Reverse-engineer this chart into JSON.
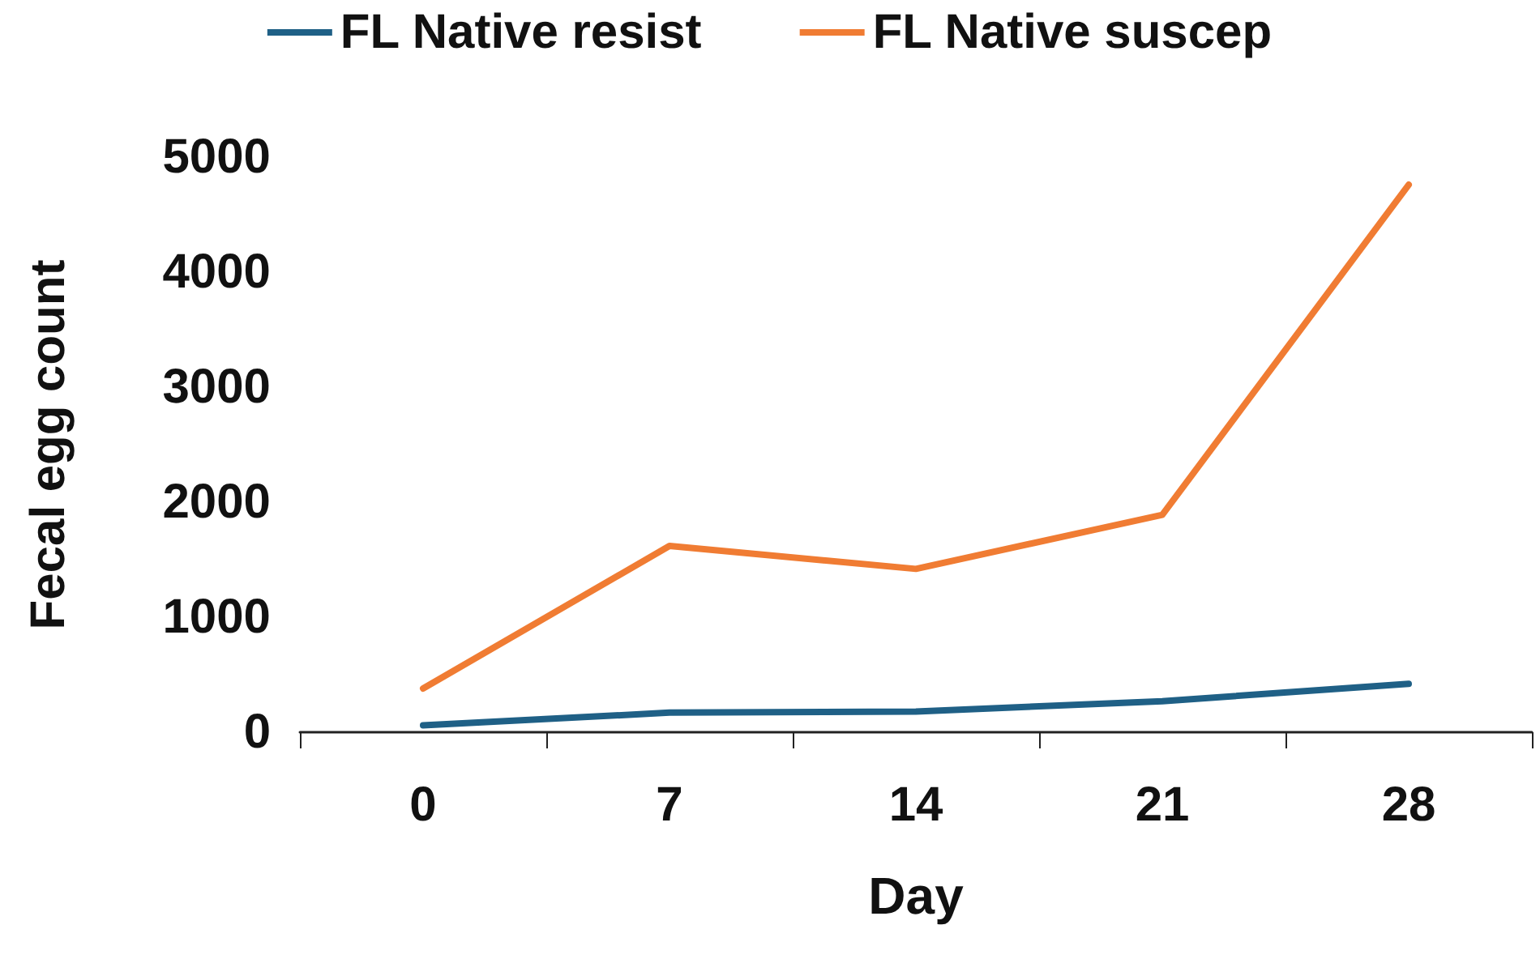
{
  "chart_data": {
    "type": "line",
    "xlabel": "Day",
    "ylabel": "Fecal egg count",
    "categories": [
      "0",
      "7",
      "14",
      "21",
      "28"
    ],
    "series": [
      {
        "name": "FL Native resist",
        "color": "#1f6086",
        "values": [
          60,
          170,
          180,
          270,
          420
        ]
      },
      {
        "name": "FL Native suscep",
        "color": "#f07c33",
        "values": [
          380,
          1620,
          1420,
          1890,
          4760
        ]
      }
    ],
    "ylim": [
      0,
      5000
    ],
    "yticks": [
      0,
      1000,
      2000,
      3000,
      4000,
      5000
    ],
    "grid": false,
    "legend": "top",
    "marker": "none",
    "line_style": "solid"
  }
}
